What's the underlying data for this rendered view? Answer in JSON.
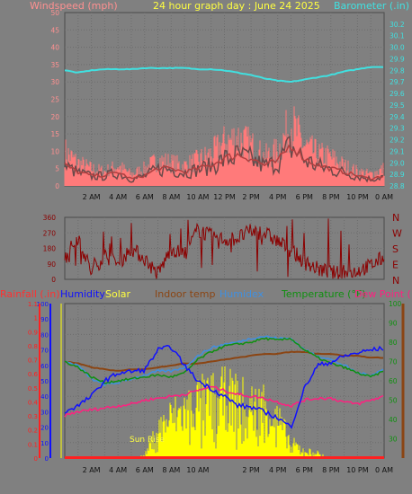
{
  "header": {
    "title": "24 hour graph day : June 24 2025",
    "left_axis_label": "Windspeed (mph)",
    "right_axis_label": "Barometer (.in)"
  },
  "colors": {
    "background": "#808080",
    "grid": "#6c6c6c",
    "wind_gust": "#ff7a7a",
    "wind_avg": "#b04040",
    "wind_dark": "#6a4a4a",
    "barometer": "#40e0e0",
    "wind_dir": "#8b0000",
    "rain": "#ff2020",
    "humidity": "#1010ff",
    "solar": "#ffff00",
    "indoor": "#8b4513",
    "humidex": "#4090e0",
    "temperature": "#109010",
    "dewpoint": "#ff2080"
  },
  "time_labels": [
    "2 AM",
    "4 AM",
    "6 AM",
    "8 AM",
    "10 AM",
    "12 PM",
    "2 PM",
    "4 PM",
    "6 PM",
    "8 PM",
    "10 PM",
    "0 AM"
  ],
  "panel3_time_labels": [
    "2 AM",
    "4 AM",
    "6 AM",
    "8 AM",
    "10 AM",
    "",
    "2 PM",
    "4 PM",
    "6 PM",
    "8 PM",
    "10 PM",
    "0 AM"
  ],
  "chart_data": [
    {
      "type": "line",
      "title": "24 hour graph day : June 24 2025",
      "xlabel": "",
      "ylabel": "Windspeed (mph)",
      "ylim": [
        0,
        50
      ],
      "y_ticks": [
        0,
        5,
        10,
        15,
        20,
        25,
        30,
        35,
        40,
        45,
        50
      ],
      "y2label": "Barometer (.in)",
      "y2lim": [
        28.8,
        30.3
      ],
      "y2_ticks": [
        28.8,
        28.9,
        29.0,
        29.1,
        29.2,
        29.3,
        29.4,
        29.5,
        29.6,
        29.7,
        29.8,
        29.9,
        30.0,
        30.1,
        30.2
      ],
      "x_hours": [
        0,
        1,
        2,
        3,
        4,
        5,
        6,
        7,
        8,
        9,
        10,
        11,
        12,
        13,
        14,
        15,
        16,
        17,
        18,
        19,
        20,
        21,
        22,
        23,
        24
      ],
      "series": [
        {
          "name": "Windspeed (mph)",
          "role": "gust",
          "values": [
            12,
            8,
            6,
            5,
            7,
            4,
            6,
            9,
            8,
            7,
            9,
            11,
            15,
            17,
            14,
            10,
            12,
            22,
            14,
            11,
            10,
            7,
            5,
            4,
            6
          ]
        },
        {
          "name": "Windspeed (mph)",
          "role": "average",
          "values": [
            6,
            4,
            3,
            3,
            4,
            2,
            3,
            5,
            5,
            4,
            5,
            6,
            8,
            9,
            8,
            6,
            7,
            12,
            8,
            6,
            5,
            4,
            3,
            2,
            3
          ]
        },
        {
          "name": "Barometer (.in)",
          "values": [
            29.8,
            29.78,
            29.8,
            29.81,
            29.81,
            29.81,
            29.82,
            29.82,
            29.82,
            29.82,
            29.81,
            29.81,
            29.8,
            29.78,
            29.76,
            29.73,
            29.71,
            29.7,
            29.72,
            29.74,
            29.76,
            29.79,
            29.81,
            29.83,
            29.83
          ]
        }
      ]
    },
    {
      "type": "line",
      "xlabel": "",
      "ylim": [
        0,
        360
      ],
      "y_ticks": [
        0,
        90,
        180,
        270,
        360
      ],
      "direction_labels": [
        "N",
        "W",
        "S",
        "E",
        "N"
      ],
      "x_hours": [
        0,
        1,
        2,
        3,
        4,
        5,
        6,
        7,
        8,
        9,
        10,
        11,
        12,
        13,
        14,
        15,
        16,
        17,
        18,
        19,
        20,
        21,
        22,
        23,
        24
      ],
      "series": [
        {
          "name": "Wind direction",
          "values": [
            120,
            250,
            40,
            140,
            90,
            180,
            120,
            30,
            180,
            140,
            290,
            250,
            230,
            240,
            280,
            270,
            220,
            170,
            100,
            60,
            40,
            30,
            50,
            80,
            130
          ]
        }
      ]
    },
    {
      "type": "line",
      "ylabel": "Humidity",
      "ylim": [
        0,
        100
      ],
      "y_ticks": [
        0,
        10,
        20,
        30,
        40,
        50,
        60,
        70,
        80,
        90,
        100
      ],
      "rain_axis_label": "Rainfall (.in)",
      "rain_ylim": [
        0,
        1.1
      ],
      "rain_ticks": [
        0,
        0.1,
        0.2,
        0.3,
        0.4,
        0.5,
        0.6,
        0.7,
        0.8,
        0.9,
        1,
        1.1
      ],
      "temp_axis_label": "Temperature (°F)",
      "temp_ylim": [
        20,
        100
      ],
      "temp_ticks": [
        30,
        40,
        50,
        60,
        70,
        80,
        90,
        100
      ],
      "x_hours": [
        0,
        1,
        2,
        3,
        4,
        5,
        6,
        7,
        8,
        9,
        10,
        11,
        12,
        13,
        14,
        15,
        16,
        17,
        18,
        19,
        20,
        21,
        22,
        23,
        24
      ],
      "series": [
        {
          "name": "Rainfall (.in)",
          "values": [
            0,
            0,
            0,
            0,
            0,
            0,
            0,
            0,
            0,
            0,
            0,
            0,
            0,
            0,
            0,
            0,
            0,
            0,
            0,
            0,
            0,
            0,
            0,
            0,
            0
          ]
        },
        {
          "name": "Humidity",
          "values": [
            30,
            34,
            40,
            50,
            55,
            56,
            57,
            70,
            72,
            60,
            50,
            45,
            40,
            34,
            33,
            30,
            26,
            20,
            45,
            60,
            62,
            66,
            68,
            70,
            71
          ]
        },
        {
          "name": "Solar",
          "values": [
            0,
            0,
            0,
            0,
            0,
            0,
            2,
            22,
            32,
            37,
            44,
            45,
            48,
            45,
            40,
            42,
            30,
            12,
            6,
            4,
            0,
            0,
            0,
            0,
            0
          ]
        },
        {
          "name": "Indoor temp",
          "values": [
            70,
            69,
            67,
            66,
            65,
            66,
            66,
            67,
            68,
            69,
            69,
            70,
            71,
            72,
            73,
            74,
            74,
            75,
            75,
            74,
            74,
            73,
            73,
            72,
            72
          ]
        },
        {
          "name": "Humidex",
          "values": [
            70,
            68,
            61,
            58,
            59,
            61,
            63,
            65,
            65,
            67,
            73,
            77,
            79,
            80,
            82,
            83,
            82,
            82,
            76,
            73,
            71,
            68,
            64,
            63,
            66
          ]
        },
        {
          "name": "Temperature (°F)",
          "values": [
            70,
            67,
            62,
            59,
            60,
            61,
            62,
            63,
            62,
            64,
            71,
            75,
            78,
            79,
            80,
            82,
            81,
            82,
            76,
            72,
            69,
            67,
            64,
            62,
            65
          ]
        },
        {
          "name": "Dew Point (°F)",
          "values": [
            42,
            44,
            45,
            46,
            47,
            48,
            50,
            51,
            52,
            53,
            55,
            57,
            55,
            53,
            52,
            51,
            49,
            47,
            50,
            51,
            51,
            49,
            48,
            50,
            52
          ]
        }
      ]
    }
  ],
  "panel3_labels": {
    "rainfall": "Rainfall (.in)",
    "humidity": "Humidity",
    "solar": "Solar",
    "indoor": "Indoor temp",
    "humidex": "Humidex",
    "temperature": "Temperature (°F)",
    "dewpoint": "Dew Point (°F)",
    "sun_label": "Sun Rise"
  },
  "compass": [
    "N",
    "W",
    "S",
    "E",
    "N"
  ]
}
